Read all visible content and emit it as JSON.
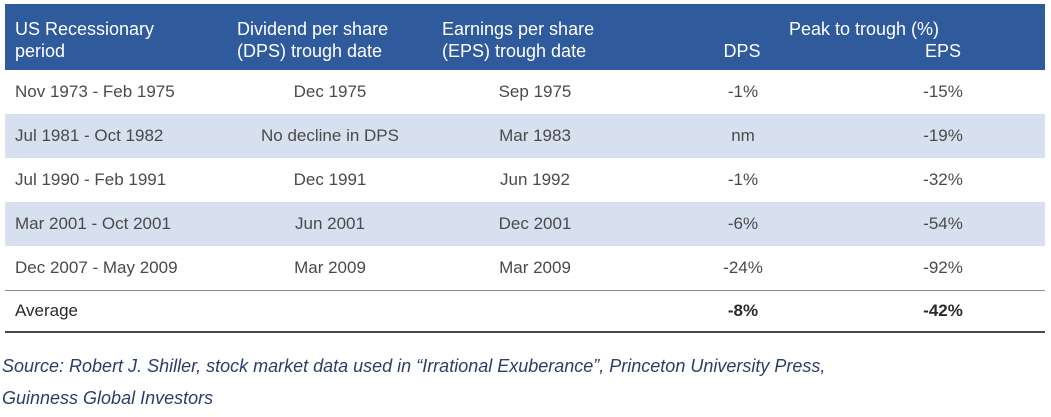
{
  "table": {
    "headers": {
      "period": [
        "US Recessionary",
        "period"
      ],
      "dps_date": [
        "Dividend per share",
        "(DPS) trough date"
      ],
      "eps_date": [
        "Earnings per share",
        "(EPS) trough date"
      ],
      "peak_to_trough": "Peak to trough (%)",
      "sub_dps": "DPS",
      "sub_eps": "EPS"
    },
    "rows": [
      {
        "period": "Nov 1973 - Feb 1975",
        "dps_date": "Dec 1975",
        "eps_date": "Sep 1975",
        "dps_pct": "-1%",
        "eps_pct": "-15%"
      },
      {
        "period": "Jul 1981 - Oct 1982",
        "dps_date": "No decline in DPS",
        "eps_date": "Mar 1983",
        "dps_pct": "nm",
        "eps_pct": "-19%"
      },
      {
        "period": "Jul 1990 - Feb 1991",
        "dps_date": "Dec 1991",
        "eps_date": "Jun 1992",
        "dps_pct": "-1%",
        "eps_pct": "-32%"
      },
      {
        "period": "Mar 2001 - Oct 2001",
        "dps_date": "Jun 2001",
        "eps_date": "Dec 2001",
        "dps_pct": "-6%",
        "eps_pct": "-54%"
      },
      {
        "period": "Dec 2007 - May 2009",
        "dps_date": "Mar 2009",
        "eps_date": "Mar 2009",
        "dps_pct": "-24%",
        "eps_pct": "-92%"
      }
    ],
    "average": {
      "label": "Average",
      "dps_pct": "-8%",
      "eps_pct": "-42%"
    }
  },
  "source": {
    "line1": "Source: Robert J. Shiller, stock market data used in “Irrational Exuberance”, Princeton University Press,",
    "line2": "Guinness Global Investors"
  },
  "colors": {
    "header_bg": "#2f5a9c",
    "shaded_row": "#d7e0ee",
    "source_text": "#2b3f66"
  }
}
